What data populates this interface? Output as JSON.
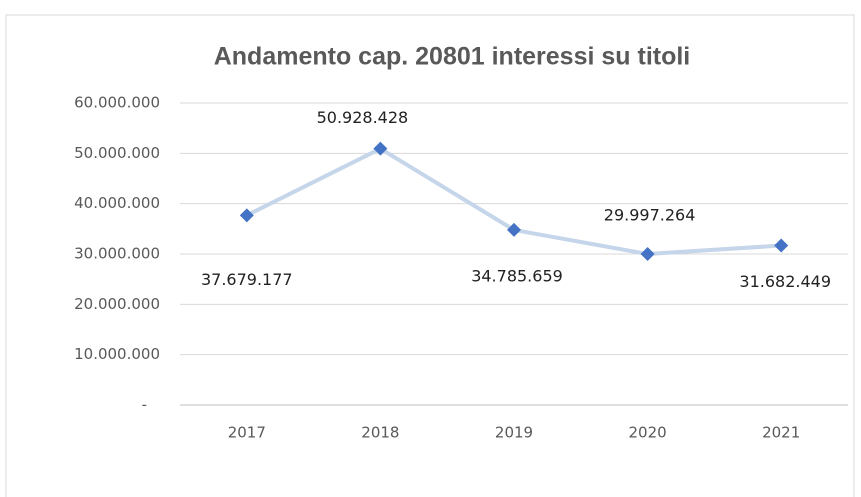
{
  "chart_data": {
    "type": "line",
    "title": "Andamento  cap. 20801 interessi su titoli",
    "categories": [
      "2017",
      "2018",
      "2019",
      "2020",
      "2021"
    ],
    "series": [
      {
        "name": "Andamento",
        "color": "#4472c4",
        "values": [
          37679177,
          50928428,
          34785659,
          29997264,
          31682449
        ],
        "value_labels": [
          "37.679.177",
          "50.928.428",
          "34.785.659",
          "29.997.264",
          "31.682.449"
        ]
      }
    ],
    "ylim": [
      0,
      60000000
    ],
    "yticks": [
      {
        "value": 0,
        "label": "-"
      },
      {
        "value": 10000000,
        "label": "10.000.000"
      },
      {
        "value": 20000000,
        "label": "20.000.000"
      },
      {
        "value": 30000000,
        "label": "30.000.000"
      },
      {
        "value": 40000000,
        "label": "40.000.000"
      },
      {
        "value": 50000000,
        "label": "50.000.000"
      },
      {
        "value": 60000000,
        "label": "60.000.000"
      }
    ],
    "grid": true
  }
}
